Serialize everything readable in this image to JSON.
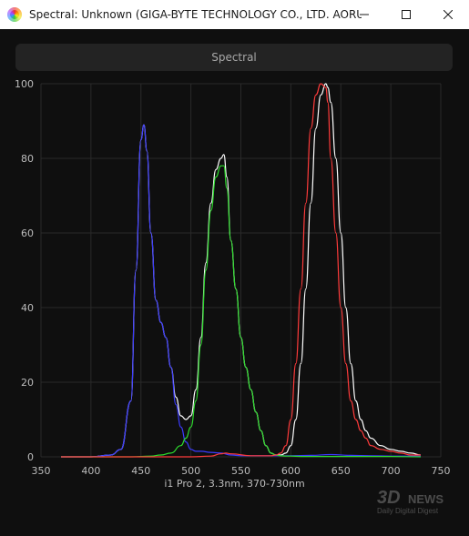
{
  "window": {
    "title": "Spectral: Unknown (GIGA-BYTE TECHNOLOGY CO., LTD. AORUS...",
    "icon": "spectrum-app-icon",
    "controls": [
      "minimize-icon",
      "maximize-icon",
      "close-icon"
    ]
  },
  "toolbar": {
    "spectral_label": "Spectral"
  },
  "chart_data": {
    "type": "line",
    "title": "",
    "xlabel": "i1 Pro 2, 3.3nm, 370-730nm",
    "ylabel": "",
    "xlim": [
      350,
      750
    ],
    "ylim": [
      0,
      100
    ],
    "x_ticks": [
      350,
      400,
      450,
      500,
      550,
      600,
      650,
      700,
      750
    ],
    "y_ticks": [
      0,
      20,
      40,
      60,
      80,
      100
    ],
    "grid": true,
    "legend": "none",
    "series": [
      {
        "color": "#ffffff",
        "x": [
          370,
          400,
          420,
          430,
          440,
          445,
          450,
          453,
          456,
          460,
          465,
          470,
          475,
          480,
          485,
          490,
          495,
          500,
          505,
          510,
          515,
          520,
          525,
          530,
          533,
          536,
          540,
          545,
          550,
          555,
          560,
          565,
          570,
          575,
          580,
          585,
          590,
          595,
          600,
          605,
          610,
          615,
          620,
          625,
          630,
          635,
          637,
          640,
          645,
          650,
          655,
          660,
          665,
          670,
          675,
          680,
          690,
          700,
          710,
          720,
          730
        ],
        "y": [
          0,
          0,
          0.5,
          2,
          15,
          50,
          85,
          89,
          82,
          60,
          42,
          36,
          32,
          24,
          16,
          11,
          10,
          11,
          18,
          32,
          52,
          68,
          77,
          80,
          81,
          75,
          58,
          45,
          32,
          24,
          18,
          12,
          7,
          3,
          1,
          0.5,
          0.5,
          1,
          3,
          10,
          25,
          45,
          68,
          88,
          97,
          100,
          99,
          95,
          80,
          60,
          40,
          25,
          15,
          10,
          7,
          5,
          3,
          2,
          1.5,
          1,
          0.5
        ]
      },
      {
        "color": "#3b3bff",
        "x": [
          370,
          400,
          420,
          430,
          440,
          445,
          450,
          453,
          456,
          460,
          465,
          470,
          475,
          480,
          485,
          490,
          495,
          500,
          505,
          510,
          520,
          530,
          540,
          550,
          560,
          580,
          600,
          620,
          640,
          660,
          680,
          700,
          730
        ],
        "y": [
          0,
          0,
          0.5,
          2,
          15,
          50,
          85,
          89,
          82,
          60,
          42,
          36,
          32,
          24,
          14,
          8,
          4,
          2,
          1.5,
          1.5,
          1.2,
          1,
          0.5,
          0.3,
          0.3,
          0.3,
          0.3,
          0.4,
          0.6,
          0.4,
          0.3,
          0.2,
          0.2
        ]
      },
      {
        "color": "#2ddc2d",
        "x": [
          370,
          400,
          440,
          460,
          470,
          480,
          490,
          495,
          500,
          505,
          510,
          515,
          520,
          525,
          530,
          533,
          536,
          540,
          545,
          550,
          555,
          560,
          565,
          570,
          575,
          580,
          585,
          590,
          595,
          600,
          610,
          630,
          650,
          680,
          700,
          730
        ],
        "y": [
          0,
          0,
          0,
          0.2,
          0.5,
          1,
          3,
          5,
          8,
          15,
          30,
          50,
          66,
          75,
          78,
          78,
          72,
          58,
          45,
          32,
          24,
          18,
          12,
          7,
          3,
          1,
          0.5,
          0.3,
          0.2,
          0.2,
          0.1,
          0.1,
          0.1,
          0.1,
          0.1,
          0
        ]
      },
      {
        "color": "#ff3b3b",
        "x": [
          370,
          500,
          520,
          530,
          535,
          540,
          560,
          580,
          585,
          590,
          595,
          600,
          605,
          610,
          615,
          620,
          625,
          630,
          635,
          637,
          640,
          645,
          650,
          655,
          660,
          665,
          670,
          675,
          680,
          690,
          700,
          710,
          720,
          730
        ],
        "y": [
          0,
          0,
          0.2,
          0.8,
          1,
          0.8,
          0.3,
          0.3,
          0.5,
          1,
          3,
          10,
          25,
          45,
          68,
          88,
          97,
          100,
          99,
          95,
          80,
          60,
          40,
          25,
          15,
          10,
          7,
          5,
          3,
          2,
          1.5,
          1,
          0.5,
          0.5
        ]
      }
    ]
  }
}
